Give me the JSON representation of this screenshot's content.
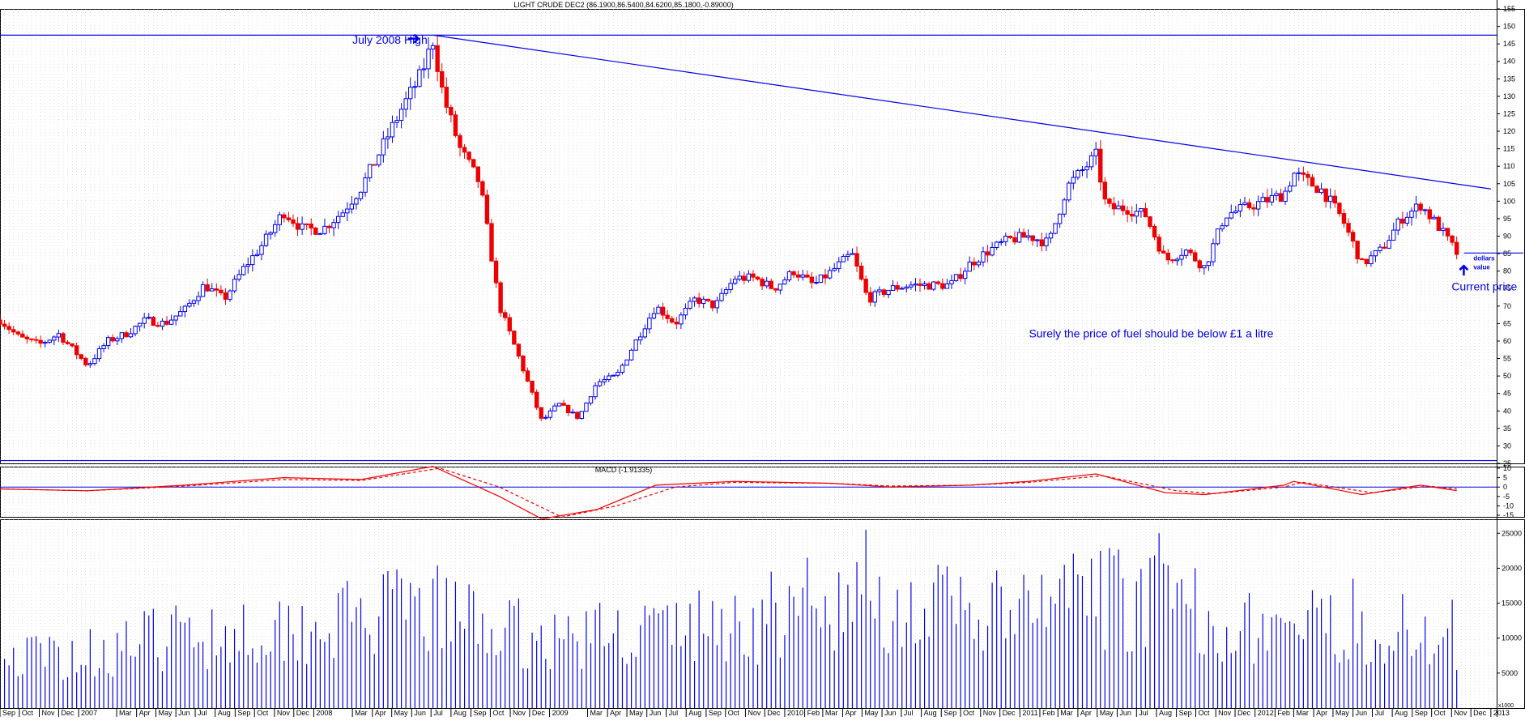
{
  "chart_data": [
    {
      "type": "candlestick",
      "title": "LIGHT CRUDE DEC2 (86.1900,86.5400,84.6200,85.1800,-0.89000)",
      "ylim": [
        25,
        155
      ],
      "y_ticks": [
        25,
        30,
        35,
        40,
        45,
        50,
        55,
        60,
        65,
        70,
        75,
        80,
        85,
        90,
        95,
        100,
        105,
        110,
        115,
        120,
        125,
        130,
        135,
        140,
        145,
        150,
        155
      ],
      "grid": true,
      "x_range": [
        "2006-09-01",
        "2013-01-10"
      ],
      "x_labels": [
        {
          "label": "Sep",
          "date": "2006-09-01"
        },
        {
          "label": "Oct",
          "date": "2006-10-01"
        },
        {
          "label": "Nov",
          "date": "2006-11-01"
        },
        {
          "label": "Dec",
          "date": "2006-12-01"
        },
        {
          "label": "2007",
          "date": "2007-01-01"
        },
        {
          "label": "Mar",
          "date": "2007-03-01"
        },
        {
          "label": "Apr",
          "date": "2007-04-01"
        },
        {
          "label": "May",
          "date": "2007-05-01"
        },
        {
          "label": "Jun",
          "date": "2007-06-01"
        },
        {
          "label": "Jul",
          "date": "2007-07-01"
        },
        {
          "label": "Aug",
          "date": "2007-08-01"
        },
        {
          "label": "Sep",
          "date": "2007-09-01"
        },
        {
          "label": "Oct",
          "date": "2007-10-01"
        },
        {
          "label": "Nov",
          "date": "2007-11-01"
        },
        {
          "label": "Dec",
          "date": "2007-12-01"
        },
        {
          "label": "2008",
          "date": "2008-01-01"
        },
        {
          "label": "Mar",
          "date": "2008-03-01"
        },
        {
          "label": "Apr",
          "date": "2008-04-01"
        },
        {
          "label": "May",
          "date": "2008-05-01"
        },
        {
          "label": "Jun",
          "date": "2008-06-01"
        },
        {
          "label": "Jul",
          "date": "2008-07-01"
        },
        {
          "label": "Aug",
          "date": "2008-08-01"
        },
        {
          "label": "Sep",
          "date": "2008-09-01"
        },
        {
          "label": "Oct",
          "date": "2008-10-01"
        },
        {
          "label": "Nov",
          "date": "2008-11-01"
        },
        {
          "label": "Dec",
          "date": "2008-12-01"
        },
        {
          "label": "2009",
          "date": "2009-01-01"
        },
        {
          "label": "Mar",
          "date": "2009-03-01"
        },
        {
          "label": "Apr",
          "date": "2009-04-01"
        },
        {
          "label": "May",
          "date": "2009-05-01"
        },
        {
          "label": "Jun",
          "date": "2009-06-01"
        },
        {
          "label": "Jul",
          "date": "2009-07-01"
        },
        {
          "label": "Aug",
          "date": "2009-08-01"
        },
        {
          "label": "Sep",
          "date": "2009-09-01"
        },
        {
          "label": "Oct",
          "date": "2009-10-01"
        },
        {
          "label": "Nov",
          "date": "2009-11-01"
        },
        {
          "label": "Dec",
          "date": "2009-12-01"
        },
        {
          "label": "2010",
          "date": "2010-01-01"
        },
        {
          "label": "Feb",
          "date": "2010-02-01"
        },
        {
          "label": "Mar",
          "date": "2010-03-01"
        },
        {
          "label": "Apr",
          "date": "2010-04-01"
        },
        {
          "label": "May",
          "date": "2010-05-01"
        },
        {
          "label": "Jun",
          "date": "2010-06-01"
        },
        {
          "label": "Jul",
          "date": "2010-07-01"
        },
        {
          "label": "Aug",
          "date": "2010-08-01"
        },
        {
          "label": "Sep",
          "date": "2010-09-01"
        },
        {
          "label": "Oct",
          "date": "2010-10-01"
        },
        {
          "label": "Nov",
          "date": "2010-11-01"
        },
        {
          "label": "Dec",
          "date": "2010-12-01"
        },
        {
          "label": "2011",
          "date": "2011-01-01"
        },
        {
          "label": "Feb",
          "date": "2011-02-01"
        },
        {
          "label": "Mar",
          "date": "2011-03-01"
        },
        {
          "label": "Apr",
          "date": "2011-04-01"
        },
        {
          "label": "May",
          "date": "2011-05-01"
        },
        {
          "label": "Jun",
          "date": "2011-06-01"
        },
        {
          "label": "Jul",
          "date": "2011-07-01"
        },
        {
          "label": "Aug",
          "date": "2011-08-01"
        },
        {
          "label": "Sep",
          "date": "2011-09-01"
        },
        {
          "label": "Oct",
          "date": "2011-10-01"
        },
        {
          "label": "Nov",
          "date": "2011-11-01"
        },
        {
          "label": "Dec",
          "date": "2011-12-01"
        },
        {
          "label": "2012",
          "date": "2012-01-01"
        },
        {
          "label": "Feb",
          "date": "2012-02-01"
        },
        {
          "label": "Mar",
          "date": "2012-03-01"
        },
        {
          "label": "Apr",
          "date": "2012-04-01"
        },
        {
          "label": "May",
          "date": "2012-05-01"
        },
        {
          "label": "Jun",
          "date": "2012-06-01"
        },
        {
          "label": "Jul",
          "date": "2012-07-01"
        },
        {
          "label": "Aug",
          "date": "2012-08-01"
        },
        {
          "label": "Sep",
          "date": "2012-09-01"
        },
        {
          "label": "Oct",
          "date": "2012-10-01"
        },
        {
          "label": "Nov",
          "date": "2012-11-01"
        },
        {
          "label": "Dec",
          "date": "2012-12-01"
        },
        {
          "label": "2013",
          "date": "2013-01-01"
        }
      ],
      "price_path": [
        [
          "2006-09-01",
          66
        ],
        [
          "2006-10-01",
          61
        ],
        [
          "2006-11-01",
          59
        ],
        [
          "2006-12-01",
          62
        ],
        [
          "2007-01-15",
          53
        ],
        [
          "2007-02-15",
          60
        ],
        [
          "2007-03-15",
          62
        ],
        [
          "2007-04-15",
          66
        ],
        [
          "2007-05-15",
          65
        ],
        [
          "2007-06-15",
          69
        ],
        [
          "2007-07-15",
          76
        ],
        [
          "2007-08-15",
          72
        ],
        [
          "2007-09-15",
          81
        ],
        [
          "2007-10-15",
          88
        ],
        [
          "2007-11-15",
          97
        ],
        [
          "2007-12-15",
          92
        ],
        [
          "2008-01-15",
          92
        ],
        [
          "2008-02-15",
          97
        ],
        [
          "2008-03-15",
          104
        ],
        [
          "2008-04-15",
          115
        ],
        [
          "2008-05-15",
          126
        ],
        [
          "2008-06-15",
          136
        ],
        [
          "2008-07-04",
          146
        ],
        [
          "2008-07-20",
          130
        ],
        [
          "2008-08-15",
          115
        ],
        [
          "2008-09-15",
          105
        ],
        [
          "2008-10-15",
          70
        ],
        [
          "2008-11-15",
          55
        ],
        [
          "2008-12-20",
          37
        ],
        [
          "2009-01-15",
          42
        ],
        [
          "2009-02-15",
          38
        ],
        [
          "2009-03-15",
          48
        ],
        [
          "2009-04-15",
          50
        ],
        [
          "2009-05-15",
          60
        ],
        [
          "2009-06-15",
          70
        ],
        [
          "2009-07-15",
          65
        ],
        [
          "2009-08-15",
          72
        ],
        [
          "2009-09-15",
          70
        ],
        [
          "2009-10-15",
          78
        ],
        [
          "2009-11-15",
          78
        ],
        [
          "2009-12-15",
          75
        ],
        [
          "2010-01-15",
          80
        ],
        [
          "2010-02-15",
          76
        ],
        [
          "2010-03-15",
          80
        ],
        [
          "2010-04-15",
          85
        ],
        [
          "2010-05-10",
          72
        ],
        [
          "2010-06-15",
          75
        ],
        [
          "2010-07-15",
          76
        ],
        [
          "2010-08-15",
          76
        ],
        [
          "2010-09-15",
          76
        ],
        [
          "2010-10-15",
          82
        ],
        [
          "2010-11-15",
          86
        ],
        [
          "2010-12-15",
          89
        ],
        [
          "2011-01-15",
          90
        ],
        [
          "2011-02-15",
          88
        ],
        [
          "2011-03-15",
          104
        ],
        [
          "2011-04-29",
          113
        ],
        [
          "2011-05-15",
          98
        ],
        [
          "2011-06-15",
          98
        ],
        [
          "2011-07-15",
          96
        ],
        [
          "2011-08-15",
          83
        ],
        [
          "2011-09-15",
          86
        ],
        [
          "2011-10-15",
          81
        ],
        [
          "2011-11-15",
          96
        ],
        [
          "2011-12-15",
          98
        ],
        [
          "2012-01-15",
          100
        ],
        [
          "2012-02-15",
          102
        ],
        [
          "2012-03-01",
          108
        ],
        [
          "2012-04-15",
          103
        ],
        [
          "2012-05-15",
          95
        ],
        [
          "2012-06-15",
          82
        ],
        [
          "2012-07-15",
          86
        ],
        [
          "2012-08-15",
          95
        ],
        [
          "2012-09-14",
          99
        ],
        [
          "2012-10-15",
          92
        ],
        [
          "2012-11-09",
          85.18
        ]
      ],
      "lines": [
        {
          "role": "horizontal",
          "y": 147.5
        },
        {
          "role": "horizontal",
          "y": 25.8
        },
        {
          "role": "trend",
          "from": [
            "2008-07-04",
            147.5
          ],
          "to": [
            "2013-01-01",
            103.5
          ]
        },
        {
          "role": "horizontal",
          "y": 85.18,
          "from_date": "2012-11-20"
        }
      ],
      "annotations": [
        {
          "text": "July 2008 High",
          "at": [
            "2008-03-01",
            145
          ]
        },
        {
          "text": "Surely the price of fuel should be below £1 a litre",
          "at": [
            "2011-01-15",
            61
          ]
        },
        {
          "text": "Current price",
          "at": [
            "2012-11-01",
            74.5
          ]
        },
        {
          "text": "dollars",
          "at": [
            "2012-12-05",
            83
          ]
        },
        {
          "text": "value",
          "at": [
            "2012-12-05",
            80.5
          ]
        }
      ]
    },
    {
      "type": "line",
      "title": "MACD (-1.91335)",
      "ylim": [
        -15,
        10
      ],
      "y_ticks": [
        10,
        5,
        0,
        -5,
        -10,
        -15
      ],
      "series": [
        {
          "role": "macd",
          "style": "solid",
          "color": "#ee0000",
          "points": [
            [
              "2006-09-01",
              -1
            ],
            [
              "2007-01-15",
              -2
            ],
            [
              "2007-06-15",
              1
            ],
            [
              "2007-11-15",
              5
            ],
            [
              "2008-03-15",
              4
            ],
            [
              "2008-07-04",
              11
            ],
            [
              "2008-10-15",
              -5
            ],
            [
              "2008-12-20",
              -17
            ],
            [
              "2009-03-15",
              -12
            ],
            [
              "2009-06-15",
              1
            ],
            [
              "2009-10-15",
              3
            ],
            [
              "2010-03-15",
              2
            ],
            [
              "2010-06-15",
              0
            ],
            [
              "2010-10-15",
              1
            ],
            [
              "2011-01-15",
              3
            ],
            [
              "2011-04-29",
              7
            ],
            [
              "2011-08-15",
              -3
            ],
            [
              "2011-10-15",
              -4
            ],
            [
              "2012-02-15",
              1
            ],
            [
              "2012-03-01",
              3
            ],
            [
              "2012-06-15",
              -4
            ],
            [
              "2012-09-14",
              1
            ],
            [
              "2012-11-09",
              -1.91
            ]
          ]
        },
        {
          "role": "signal",
          "style": "dashed",
          "color": "#ee0000",
          "points": [
            [
              "2006-09-01",
              -1
            ],
            [
              "2007-01-15",
              -2
            ],
            [
              "2007-06-15",
              0.5
            ],
            [
              "2007-11-15",
              4
            ],
            [
              "2008-03-15",
              3.5
            ],
            [
              "2008-07-15",
              10
            ],
            [
              "2008-10-15",
              0
            ],
            [
              "2009-01-20",
              -16
            ],
            [
              "2009-04-15",
              -10
            ],
            [
              "2009-07-15",
              0
            ],
            [
              "2009-10-15",
              2.5
            ],
            [
              "2010-03-15",
              2
            ],
            [
              "2010-06-15",
              0.5
            ],
            [
              "2010-10-15",
              1
            ],
            [
              "2011-01-15",
              2.5
            ],
            [
              "2011-05-10",
              6
            ],
            [
              "2011-09-01",
              -2
            ],
            [
              "2011-10-30",
              -3.5
            ],
            [
              "2012-02-15",
              0
            ],
            [
              "2012-03-15",
              2.5
            ],
            [
              "2012-07-01",
              -3
            ],
            [
              "2012-09-25",
              0.5
            ],
            [
              "2012-11-09",
              -1
            ]
          ]
        }
      ],
      "zero_line": 0
    },
    {
      "type": "bar",
      "title": "",
      "ylim": [
        0,
        27000
      ],
      "y_ticks": [
        25000,
        20000,
        15000,
        10000,
        5000
      ],
      "bar_color": "#0000ee",
      "volume_path": [
        [
          "2006-09-01",
          8000
        ],
        [
          "2007-01-15",
          9000
        ],
        [
          "2007-06-15",
          12000
        ],
        [
          "2008-01-15",
          14000
        ],
        [
          "2008-07-04",
          16000
        ],
        [
          "2008-12-20",
          11000
        ],
        [
          "2009-06-15",
          13000
        ],
        [
          "2010-01-15",
          14000
        ],
        [
          "2010-05-10",
          17000
        ],
        [
          "2011-01-15",
          15000
        ],
        [
          "2011-04-29",
          18000
        ],
        [
          "2011-08-15",
          17000
        ],
        [
          "2012-01-15",
          13000
        ],
        [
          "2012-06-15",
          13000
        ],
        [
          "2012-11-09",
          12000
        ]
      ],
      "spikes": [
        [
          "2010-05-07",
          25500
        ],
        [
          "2011-08-05",
          25000
        ],
        [
          "2011-05-06",
          22500
        ],
        [
          "2010-02-05",
          21500
        ],
        [
          "2009-12-11",
          19500
        ],
        [
          "2011-03-11",
          20500
        ],
        [
          "2012-06-01",
          18500
        ],
        [
          "2012-11-02",
          15500
        ]
      ],
      "unit_label": "x1000"
    }
  ]
}
